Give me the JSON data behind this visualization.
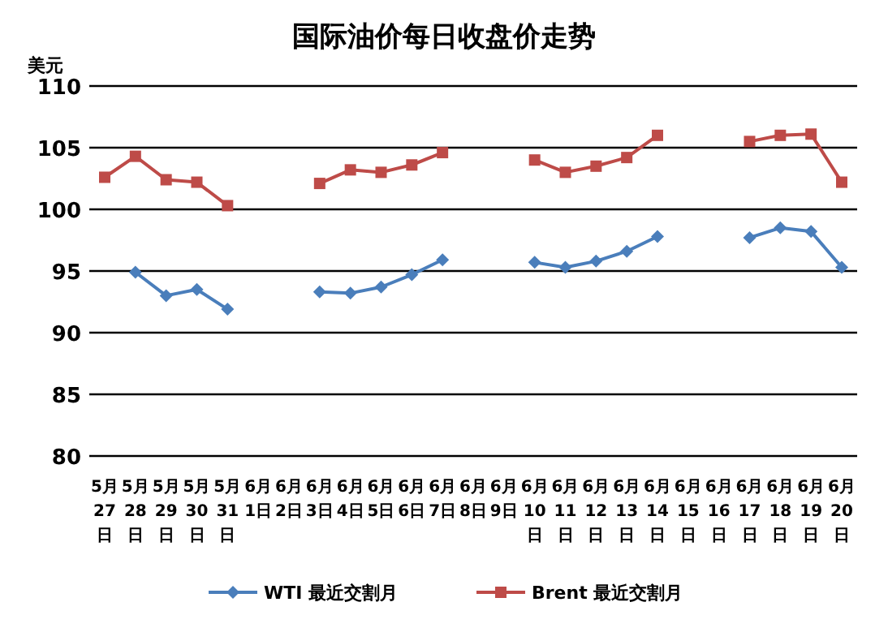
{
  "chart_data": {
    "type": "line",
    "title": "国际油价每日收盘价走势",
    "ylabel": "美元",
    "categories": [
      "5月27日",
      "5月28日",
      "5月29日",
      "5月30日",
      "5月31日",
      "6月1日",
      "6月2日",
      "6月3日",
      "6月4日",
      "6月5日",
      "6月6日",
      "6月7日",
      "6月8日",
      "6月9日",
      "6月10日",
      "6月11日",
      "6月12日",
      "6月13日",
      "6月14日",
      "6月15日",
      "6月16日",
      "6月17日",
      "6月18日",
      "6月19日",
      "6月20日"
    ],
    "series": [
      {
        "name": "WTI 最近交割月",
        "color": "#4a7ebb",
        "marker": "diamond",
        "values": [
          null,
          94.9,
          93.0,
          93.5,
          91.9,
          null,
          null,
          93.3,
          93.2,
          93.7,
          94.7,
          95.9,
          null,
          null,
          95.7,
          95.3,
          95.8,
          96.6,
          97.8,
          null,
          null,
          97.7,
          98.5,
          98.2,
          95.3
        ]
      },
      {
        "name": "Brent 最近交割月",
        "color": "#be4b48",
        "marker": "square",
        "values": [
          102.6,
          104.3,
          102.4,
          102.2,
          100.3,
          null,
          null,
          102.1,
          103.2,
          103.0,
          103.6,
          104.6,
          null,
          null,
          104.0,
          103.0,
          103.5,
          104.2,
          106.0,
          null,
          null,
          105.5,
          106.0,
          106.1,
          102.2
        ]
      }
    ],
    "ylim": [
      80,
      110
    ],
    "yticks": [
      80,
      85,
      90,
      95,
      100,
      105,
      110
    ],
    "grid": "y",
    "legend": "bottom",
    "line_style": "solid"
  }
}
